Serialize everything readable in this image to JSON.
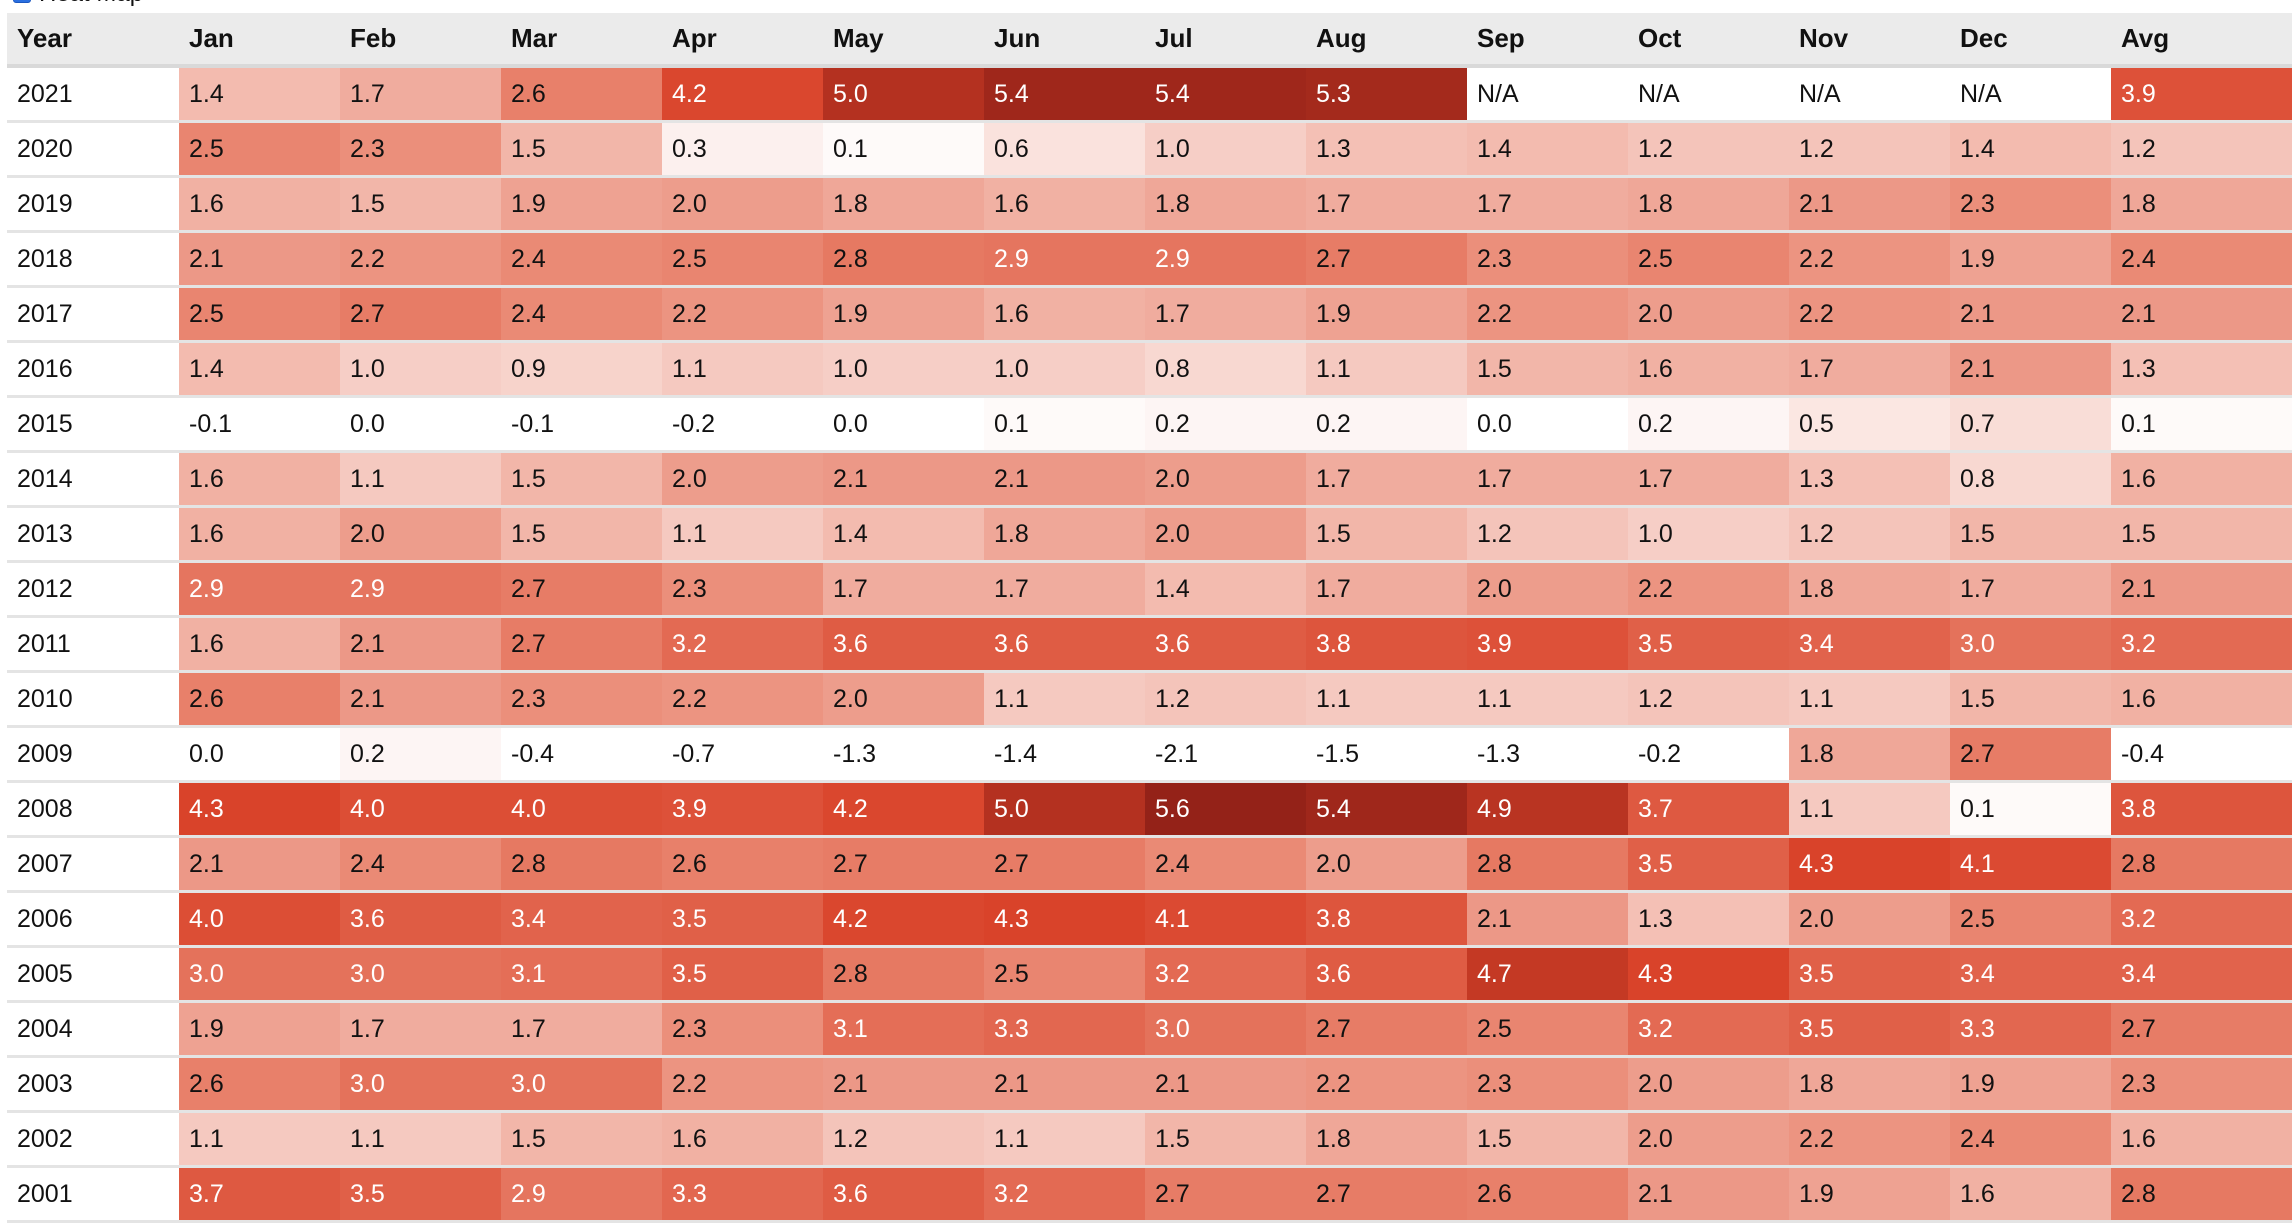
{
  "heatmap_toggle": {
    "label": "Heat Map",
    "checked": true
  },
  "table": {
    "headers": [
      "Year",
      "Jan",
      "Feb",
      "Mar",
      "Apr",
      "May",
      "Jun",
      "Jul",
      "Aug",
      "Sep",
      "Oct",
      "Nov",
      "Dec",
      "Avg"
    ],
    "rows": [
      [
        "2021",
        "1.4",
        "1.7",
        "2.6",
        "4.2",
        "5.0",
        "5.4",
        "5.4",
        "5.3",
        "N/A",
        "N/A",
        "N/A",
        "N/A",
        "3.9"
      ],
      [
        "2020",
        "2.5",
        "2.3",
        "1.5",
        "0.3",
        "0.1",
        "0.6",
        "1.0",
        "1.3",
        "1.4",
        "1.2",
        "1.2",
        "1.4",
        "1.2"
      ],
      [
        "2019",
        "1.6",
        "1.5",
        "1.9",
        "2.0",
        "1.8",
        "1.6",
        "1.8",
        "1.7",
        "1.7",
        "1.8",
        "2.1",
        "2.3",
        "1.8"
      ],
      [
        "2018",
        "2.1",
        "2.2",
        "2.4",
        "2.5",
        "2.8",
        "2.9",
        "2.9",
        "2.7",
        "2.3",
        "2.5",
        "2.2",
        "1.9",
        "2.4"
      ],
      [
        "2017",
        "2.5",
        "2.7",
        "2.4",
        "2.2",
        "1.9",
        "1.6",
        "1.7",
        "1.9",
        "2.2",
        "2.0",
        "2.2",
        "2.1",
        "2.1"
      ],
      [
        "2016",
        "1.4",
        "1.0",
        "0.9",
        "1.1",
        "1.0",
        "1.0",
        "0.8",
        "1.1",
        "1.5",
        "1.6",
        "1.7",
        "2.1",
        "1.3"
      ],
      [
        "2015",
        "-0.1",
        "0.0",
        "-0.1",
        "-0.2",
        "0.0",
        "0.1",
        "0.2",
        "0.2",
        "0.0",
        "0.2",
        "0.5",
        "0.7",
        "0.1"
      ],
      [
        "2014",
        "1.6",
        "1.1",
        "1.5",
        "2.0",
        "2.1",
        "2.1",
        "2.0",
        "1.7",
        "1.7",
        "1.7",
        "1.3",
        "0.8",
        "1.6"
      ],
      [
        "2013",
        "1.6",
        "2.0",
        "1.5",
        "1.1",
        "1.4",
        "1.8",
        "2.0",
        "1.5",
        "1.2",
        "1.0",
        "1.2",
        "1.5",
        "1.5"
      ],
      [
        "2012",
        "2.9",
        "2.9",
        "2.7",
        "2.3",
        "1.7",
        "1.7",
        "1.4",
        "1.7",
        "2.0",
        "2.2",
        "1.8",
        "1.7",
        "2.1"
      ],
      [
        "2011",
        "1.6",
        "2.1",
        "2.7",
        "3.2",
        "3.6",
        "3.6",
        "3.6",
        "3.8",
        "3.9",
        "3.5",
        "3.4",
        "3.0",
        "3.2"
      ],
      [
        "2010",
        "2.6",
        "2.1",
        "2.3",
        "2.2",
        "2.0",
        "1.1",
        "1.2",
        "1.1",
        "1.1",
        "1.2",
        "1.1",
        "1.5",
        "1.6"
      ],
      [
        "2009",
        "0.0",
        "0.2",
        "-0.4",
        "-0.7",
        "-1.3",
        "-1.4",
        "-2.1",
        "-1.5",
        "-1.3",
        "-0.2",
        "1.8",
        "2.7",
        "-0.4"
      ],
      [
        "2008",
        "4.3",
        "4.0",
        "4.0",
        "3.9",
        "4.2",
        "5.0",
        "5.6",
        "5.4",
        "4.9",
        "3.7",
        "1.1",
        "0.1",
        "3.8"
      ],
      [
        "2007",
        "2.1",
        "2.4",
        "2.8",
        "2.6",
        "2.7",
        "2.7",
        "2.4",
        "2.0",
        "2.8",
        "3.5",
        "4.3",
        "4.1",
        "2.8"
      ],
      [
        "2006",
        "4.0",
        "3.6",
        "3.4",
        "3.5",
        "4.2",
        "4.3",
        "4.1",
        "3.8",
        "2.1",
        "1.3",
        "2.0",
        "2.5",
        "3.2"
      ],
      [
        "2005",
        "3.0",
        "3.0",
        "3.1",
        "3.5",
        "2.8",
        "2.5",
        "3.2",
        "3.6",
        "4.7",
        "4.3",
        "3.5",
        "3.4",
        "3.4"
      ],
      [
        "2004",
        "1.9",
        "1.7",
        "1.7",
        "2.3",
        "3.1",
        "3.3",
        "3.0",
        "2.7",
        "2.5",
        "3.2",
        "3.5",
        "3.3",
        "2.7"
      ],
      [
        "2003",
        "2.6",
        "3.0",
        "3.0",
        "2.2",
        "2.1",
        "2.1",
        "2.1",
        "2.2",
        "2.3",
        "2.0",
        "1.8",
        "1.9",
        "2.3"
      ],
      [
        "2002",
        "1.1",
        "1.1",
        "1.5",
        "1.6",
        "1.2",
        "1.1",
        "1.5",
        "1.8",
        "1.5",
        "2.0",
        "2.2",
        "2.4",
        "1.6"
      ],
      [
        "2001",
        "3.7",
        "3.5",
        "2.9",
        "3.3",
        "3.6",
        "3.2",
        "2.7",
        "2.7",
        "2.6",
        "2.1",
        "1.9",
        "1.6",
        "2.8"
      ]
    ]
  },
  "colors": {
    "scale_low": "#ffffff",
    "scale_mid": "#e8806a",
    "scale_high_1": "#d9432a",
    "scale_high_2": "#942218",
    "header_bg": "#ebebeb",
    "checkbox": "#2a6fe0"
  }
}
